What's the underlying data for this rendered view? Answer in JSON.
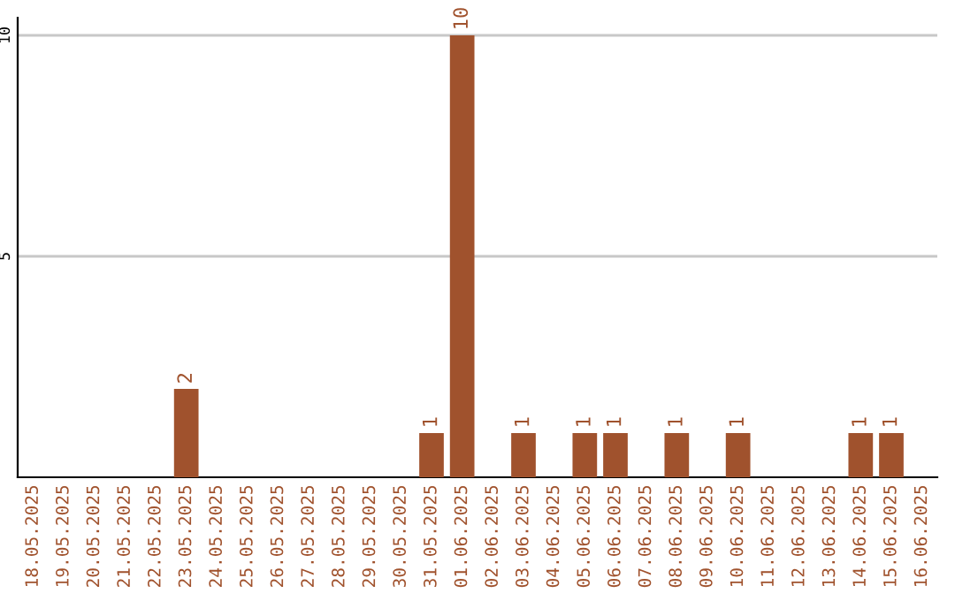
{
  "chart_data": {
    "type": "bar",
    "categories": [
      "18.05.2025",
      "19.05.2025",
      "20.05.2025",
      "21.05.2025",
      "22.05.2025",
      "23.05.2025",
      "24.05.2025",
      "25.05.2025",
      "26.05.2025",
      "27.05.2025",
      "28.05.2025",
      "29.05.2025",
      "30.05.2025",
      "31.05.2025",
      "01.06.2025",
      "02.06.2025",
      "03.06.2025",
      "04.06.2025",
      "05.06.2025",
      "06.06.2025",
      "07.06.2025",
      "08.06.2025",
      "09.06.2025",
      "10.06.2025",
      "11.06.2025",
      "12.06.2025",
      "13.06.2025",
      "14.06.2025",
      "15.06.2025",
      "16.06.2025"
    ],
    "values": [
      0,
      0,
      0,
      0,
      0,
      2,
      0,
      0,
      0,
      0,
      0,
      0,
      0,
      1,
      10,
      0,
      1,
      0,
      1,
      1,
      0,
      1,
      0,
      1,
      0,
      0,
      0,
      1,
      1,
      0
    ],
    "value_labels": [
      null,
      null,
      null,
      null,
      null,
      "2",
      null,
      null,
      null,
      null,
      null,
      null,
      null,
      "1",
      "10",
      null,
      "1",
      null,
      "1",
      "1",
      null,
      "1",
      null,
      "1",
      null,
      null,
      null,
      "1",
      "1",
      null
    ],
    "color": "#a0522d",
    "ylim": [
      0,
      10.4
    ],
    "yticks": [
      5,
      10
    ],
    "grid": "y"
  }
}
